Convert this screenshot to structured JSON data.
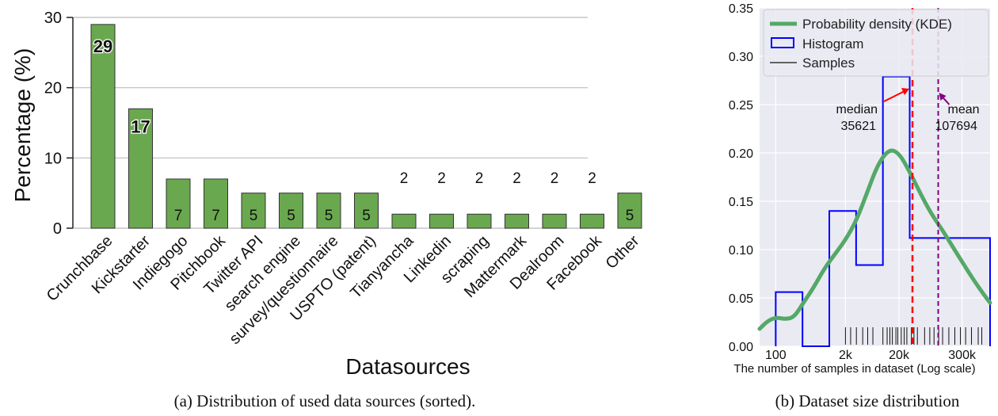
{
  "chart_data": [
    {
      "type": "bar",
      "title": "",
      "xlabel": "Datasources",
      "ylabel": "Percentage (%)",
      "ylim": [
        0,
        30
      ],
      "yticks": [
        0,
        10,
        20,
        30
      ],
      "grid": "horizontal",
      "categories": [
        "Crunchbase",
        "Kickstarter",
        "Indiegogo",
        "Pitchbook",
        "Twitter API",
        "search engine",
        "survey/questionnaire",
        "USPTO (patent)",
        "Tianyancha",
        "Linkedin",
        "scraping",
        "Mattermark",
        "Dealroom",
        "Facebook",
        "Other"
      ],
      "values": [
        29,
        17,
        7,
        7,
        5,
        5,
        5,
        5,
        2,
        2,
        2,
        2,
        2,
        2,
        5
      ],
      "data_labels": [
        "29",
        "17",
        "7",
        "7",
        "5",
        "5",
        "5",
        "5",
        "2",
        "2",
        "2",
        "2",
        "2",
        "2",
        "5"
      ],
      "bar_color": "#6aa84f",
      "label_color_outside": "#6aa84f",
      "caption": "(a) Distribution of used data sources (sorted)."
    },
    {
      "type": "histogram",
      "xlabel": "The number of samples in dataset (Log scale)",
      "ylabel": "",
      "x_scale": "log",
      "xlim": [
        50,
        1000000
      ],
      "ylim": [
        0,
        0.35
      ],
      "yticks": [
        "0.00",
        "0.05",
        "0.10",
        "0.15",
        "0.20",
        "0.25",
        "0.30",
        "0.35"
      ],
      "xticks": [
        {
          "value": 100,
          "label": "100"
        },
        {
          "value": 2000,
          "label": "2k"
        },
        {
          "value": 20000,
          "label": "20k"
        },
        {
          "value": 300000,
          "label": "300k"
        }
      ],
      "background": "#eaeaf2",
      "histogram": {
        "edges": [
          100,
          316,
          1000,
          3162,
          10000,
          31623,
          100000,
          316228,
          1000000
        ],
        "heights": [
          0.056,
          0,
          0.14,
          0.084,
          0.279,
          0.112,
          0.112,
          0.112
        ],
        "color": "#0000ff"
      },
      "kde": {
        "x": [
          50,
          70,
          100,
          150,
          220,
          320,
          500,
          800,
          1300,
          2000,
          3200,
          5000,
          8000,
          13000,
          20000,
          32000,
          50000,
          80000,
          130000,
          200000,
          320000,
          500000,
          800000,
          1000000
        ],
        "y": [
          0.018,
          0.026,
          0.03,
          0.028,
          0.03,
          0.044,
          0.06,
          0.08,
          0.096,
          0.11,
          0.13,
          0.158,
          0.188,
          0.204,
          0.2,
          0.18,
          0.158,
          0.137,
          0.12,
          0.103,
          0.085,
          0.068,
          0.052,
          0.045
        ],
        "color": "#55a868"
      },
      "samples": [
        2000,
        2500,
        3200,
        4200,
        5200,
        6500,
        10000,
        12000,
        13500,
        15000,
        17500,
        19000,
        22000,
        25000,
        28000,
        34000,
        38000,
        44000,
        60000,
        75000,
        90000,
        110000,
        130000,
        170000,
        220000,
        280000,
        350000,
        450000,
        600000,
        700000
      ],
      "median": {
        "value": 35621,
        "label": "median",
        "value_label": "35621",
        "color": "#ff0000"
      },
      "mean": {
        "value": 107694,
        "label": "mean",
        "value_label": "107694",
        "color": "#800080"
      },
      "legend": {
        "placement": "top-left",
        "entries": [
          "Probability density (KDE)",
          "Histogram",
          "Samples"
        ]
      },
      "caption": "(b) Dataset size distribution"
    }
  ]
}
